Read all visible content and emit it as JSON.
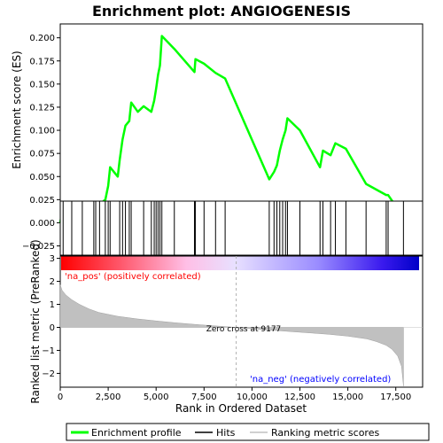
{
  "title": "Enrichment plot: ANGIOGENESIS",
  "chart_data": [
    {
      "type": "line",
      "panel": "enrichment",
      "ylabel": "Enrichment score (ES)",
      "ylim": [
        -0.035,
        0.215
      ],
      "yticks": [
        -0.025,
        0.0,
        0.025,
        0.05,
        0.075,
        0.1,
        0.125,
        0.15,
        0.175,
        0.2
      ],
      "ytick_labels": [
        "−0.025",
        "0.000",
        "0.025",
        "0.050",
        "0.075",
        "0.100",
        "0.125",
        "0.150",
        "0.175",
        "0.200"
      ],
      "xlim": [
        0,
        18900
      ],
      "grid": false,
      "color": "#00ff00",
      "series": [
        {
          "x": [
            0,
            150,
            600,
            1150,
            1400,
            1750,
            1850,
            2050,
            2350,
            2500,
            2600,
            3000,
            3100,
            3250,
            3400,
            3600,
            3700,
            4050,
            4350,
            4750,
            4900,
            5000,
            5100,
            5200,
            5300,
            5950,
            7000,
            7050,
            7500,
            8100,
            8600,
            10900,
            11150,
            11300,
            11450,
            11600,
            11750,
            11850,
            12500,
            13550,
            13700,
            14100,
            14350,
            14900,
            15950,
            17000,
            17100,
            17900
          ],
          "y": [
            0.0,
            0.018,
            0.016,
            0.005,
            -0.005,
            -0.013,
            0.01,
            0.02,
            0.025,
            0.04,
            0.06,
            0.05,
            0.068,
            0.09,
            0.105,
            0.11,
            0.13,
            0.12,
            0.126,
            0.12,
            0.132,
            0.145,
            0.16,
            0.17,
            0.202,
            0.188,
            0.163,
            0.177,
            0.172,
            0.162,
            0.156,
            0.047,
            0.055,
            0.062,
            0.078,
            0.09,
            0.1,
            0.113,
            0.1,
            0.06,
            0.078,
            0.073,
            0.086,
            0.08,
            0.042,
            0.03,
            0.03,
            0.006
          ]
        }
      ]
    },
    {
      "type": "hits",
      "panel": "hits",
      "xlim": [
        0,
        18900
      ],
      "hit_positions": [
        150,
        600,
        1150,
        1750,
        1850,
        2050,
        2350,
        2500,
        2600,
        3100,
        3250,
        3400,
        3600,
        3700,
        4350,
        4750,
        4900,
        5000,
        5100,
        5200,
        5300,
        5950,
        7000,
        7050,
        7500,
        8100,
        8600,
        10900,
        11150,
        11300,
        11450,
        11600,
        11750,
        11850,
        12500,
        13550,
        13700,
        14100,
        14350,
        14900,
        15950,
        17000,
        17100,
        17900
      ],
      "colorbar": {
        "stops": [
          "#ff0000",
          "#ff5a6e",
          "#ffbfe6",
          "#e8e0ff",
          "#9a8cff",
          "#3a1aee",
          "#0000c8"
        ],
        "zero_rank": 9177
      }
    },
    {
      "type": "area",
      "panel": "ranked-metric",
      "ylabel": "Ranked list metric (PreRanked)",
      "xlabel": "Rank in Ordered Dataset",
      "ylim": [
        -2.6,
        3.1
      ],
      "yticks": [
        -2,
        -1,
        0,
        1,
        2,
        3
      ],
      "ytick_labels": [
        "−2",
        "−1",
        "0",
        "1",
        "2",
        "3"
      ],
      "xticks": [
        0,
        2500,
        5000,
        7500,
        10000,
        12500,
        15000,
        17500
      ],
      "xtick_labels": [
        "0",
        "2,500",
        "5,000",
        "7,500",
        "10,000",
        "12,500",
        "15,000",
        "17,500"
      ],
      "xlim": [
        0,
        18900
      ],
      "x": [
        0,
        100,
        300,
        600,
        1000,
        1500,
        2000,
        3000,
        4000,
        5000,
        6000,
        7000,
        8000,
        9177,
        10000,
        11000,
        12000,
        13000,
        14000,
        15000,
        16000,
        16500,
        17000,
        17300,
        17600,
        17800,
        17900
      ],
      "values": [
        1.85,
        1.6,
        1.4,
        1.2,
        1.0,
        0.8,
        0.65,
        0.48,
        0.37,
        0.28,
        0.2,
        0.13,
        0.07,
        0.0,
        -0.06,
        -0.12,
        -0.18,
        -0.24,
        -0.3,
        -0.38,
        -0.5,
        -0.62,
        -0.78,
        -0.95,
        -1.25,
        -1.7,
        -2.55
      ],
      "fill": "#c0c0c0",
      "annotations": {
        "pos_label": "'na_pos' (positively correlated)",
        "neg_label": "'na_neg' (negatively correlated)",
        "zero_cross_label": "Zero cross at 9177",
        "zero_cross_rank": 9177
      }
    }
  ],
  "legend": {
    "placement": "bottom",
    "items": [
      {
        "label": "Enrichment profile",
        "color": "#00ff00",
        "kind": "thick-line"
      },
      {
        "label": "Hits",
        "color": "#000000",
        "kind": "line"
      },
      {
        "label": "Ranking metric scores",
        "color": "#c0c0c0",
        "kind": "line"
      }
    ]
  }
}
